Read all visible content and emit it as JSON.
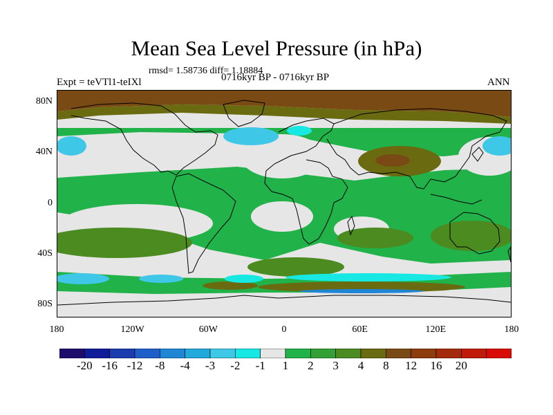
{
  "title": "Mean Sea Level Pressure (in hPa)",
  "stats": "rmsd= 1.58736 diff= 1.18884",
  "experiment": "Expt = teVTl1-teIXl",
  "period": "0716kyr BP - 0716kyr BP",
  "season": "ANN",
  "latitude_labels": [
    "80N",
    "40N",
    "0",
    "40S",
    "80S"
  ],
  "longitude_labels": [
    "180",
    "120W",
    "60W",
    "0",
    "60E",
    "120E",
    "180"
  ],
  "colorbar": {
    "colors": [
      "#1d0e6e",
      "#0f1d9a",
      "#1a3cad",
      "#1f5fc9",
      "#1f86d6",
      "#21a9dc",
      "#3ec7e6",
      "#18e8e4",
      "#e6e6e6",
      "#22b24a",
      "#33a036",
      "#4b8b20",
      "#6a6a10",
      "#7a4a14",
      "#8e3c0e",
      "#a42a0c",
      "#c01a0a",
      "#d90b06"
    ],
    "labels": [
      "-20",
      "-16",
      "-12",
      "-8",
      "-4",
      "-3",
      "-2",
      "-1",
      "1",
      "2",
      "3",
      "4",
      "8",
      "12",
      "16",
      "20"
    ]
  },
  "map": {
    "x_range": [
      -180,
      180
    ],
    "y_range": [
      -90,
      90
    ],
    "colors": {
      "ocean_gray": "#e6e6e6",
      "green": "#22b24a",
      "dark_green": "#4b8b20",
      "olive": "#6a6a10",
      "brown": "#7a4a14",
      "cyan": "#3ec7e6",
      "light_cyan": "#18e8e4",
      "blue": "#1f86d6",
      "coast": "#000000"
    }
  }
}
